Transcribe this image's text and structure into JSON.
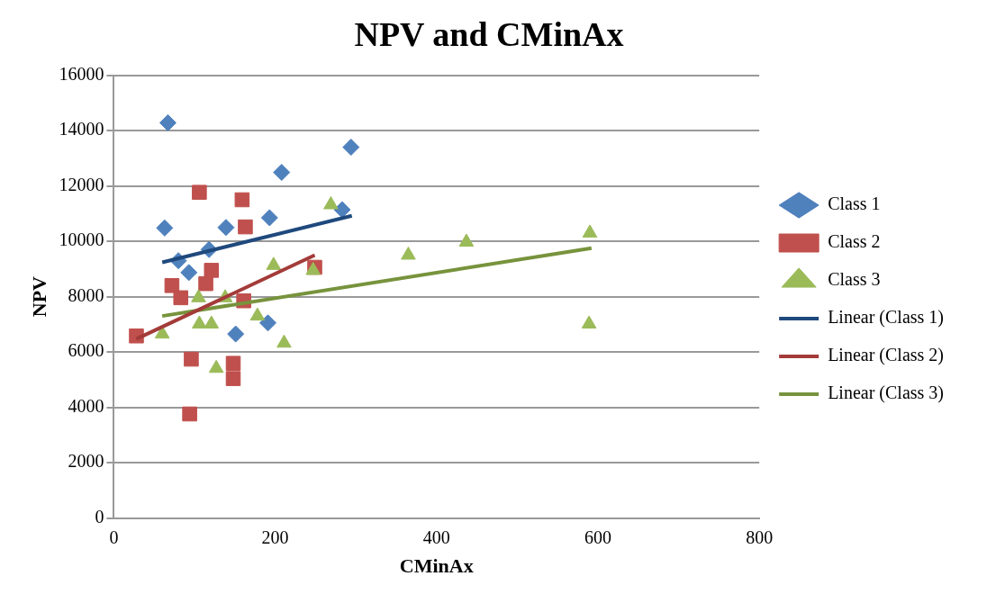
{
  "chart_data": {
    "type": "scatter",
    "title": "NPV and CMinAx",
    "xlabel": "CMinAx",
    "ylabel": "NPV",
    "xlim": [
      0,
      800
    ],
    "xticks": [
      0,
      200,
      400,
      600,
      800
    ],
    "ylim": [
      0,
      16000
    ],
    "yticks": [
      0,
      2000,
      4000,
      6000,
      8000,
      10000,
      12000,
      14000,
      16000
    ],
    "grid": "y",
    "legend": "right",
    "series": [
      {
        "name": "Class 1",
        "marker": "diamond",
        "color": "#4f81bd",
        "x": [
          67,
          63,
          118,
          80,
          93,
          139,
          193,
          208,
          151,
          191,
          294,
          283
        ],
        "values": [
          14280,
          10480,
          9700,
          9300,
          8870,
          10500,
          10850,
          12490,
          6650,
          7050,
          13400,
          11140
        ]
      },
      {
        "name": "Class 2",
        "marker": "square",
        "color": "#c0504d",
        "x": [
          106,
          159,
          163,
          121,
          72,
          114,
          83,
          161,
          28,
          96,
          148,
          148,
          94,
          249
        ],
        "values": [
          11770,
          11500,
          10520,
          8950,
          8400,
          8470,
          7960,
          7850,
          6580,
          5740,
          5590,
          5040,
          3760,
          9060
        ]
      },
      {
        "name": "Class 3",
        "marker": "triangle",
        "color": "#9bbb59",
        "x": [
          60,
          105,
          106,
          121,
          127,
          138,
          178,
          211,
          198,
          247,
          269,
          365,
          437,
          590,
          589
        ],
        "values": [
          6650,
          7960,
          7010,
          7010,
          5410,
          7960,
          7300,
          6320,
          9130,
          8950,
          11320,
          9500,
          9970,
          10300,
          7010
        ]
      },
      {
        "name": "Linear (Class 1)",
        "type": "line",
        "marker": "none",
        "color": "#1f497d",
        "x": [
          60,
          295
        ],
        "values": [
          9240,
          10920
        ]
      },
      {
        "name": "Linear (Class 2)",
        "type": "line",
        "marker": "none",
        "color": "#a33b39",
        "x": [
          28,
          249
        ],
        "values": [
          6470,
          9500
        ]
      },
      {
        "name": "Linear (Class 3)",
        "type": "line",
        "marker": "none",
        "color": "#77933c",
        "x": [
          60,
          592
        ],
        "values": [
          7300,
          9750
        ]
      }
    ]
  }
}
